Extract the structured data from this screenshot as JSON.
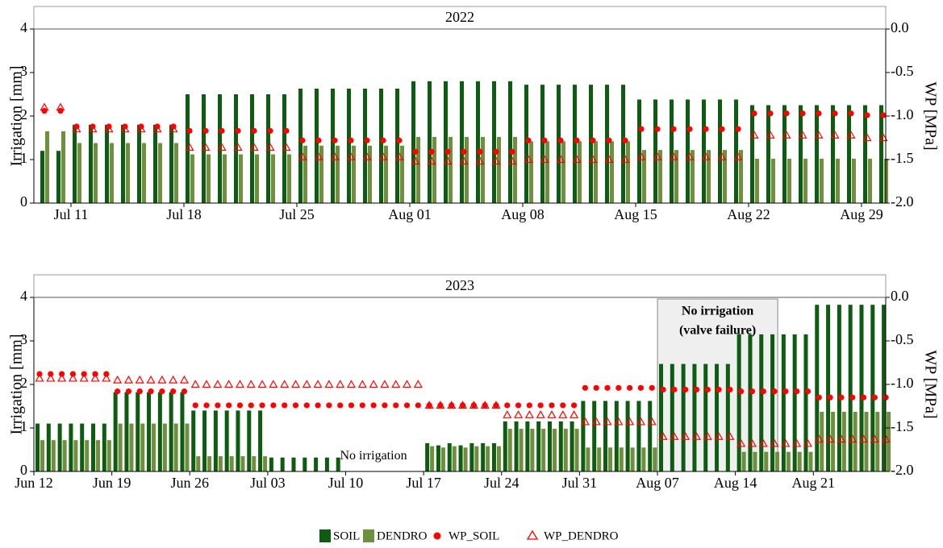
{
  "chart_data": [
    {
      "type": "bar",
      "title": "2022",
      "ylabel": "Irrigation [mm]",
      "y2label": "WP [MPa]",
      "x": [
        190,
        191,
        192,
        193,
        194,
        195,
        196,
        197,
        198,
        199,
        200,
        201,
        202,
        203,
        204,
        205,
        206,
        207,
        208,
        209,
        210,
        211,
        212,
        213,
        214,
        215,
        216,
        217,
        218,
        219,
        220,
        221,
        222,
        223,
        224,
        225,
        226,
        227,
        228,
        229,
        230,
        231,
        232,
        233,
        234,
        235,
        236,
        237,
        238,
        239,
        240,
        241,
        242
      ],
      "xlim": [
        189.7,
        242.5
      ],
      "xticks": [
        {
          "value": 192,
          "label": "Jul 11"
        },
        {
          "value": 199,
          "label": "Jul 18"
        },
        {
          "value": 206,
          "label": "Jul 25"
        },
        {
          "value": 213,
          "label": "Aug 01"
        },
        {
          "value": 220,
          "label": "Aug 08"
        },
        {
          "value": 227,
          "label": "Aug 15"
        },
        {
          "value": 234,
          "label": "Aug 22"
        },
        {
          "value": 241,
          "label": "Aug 29"
        }
      ],
      "ylim": [
        0,
        4
      ],
      "yticks": [
        0,
        1,
        2,
        3,
        4
      ],
      "y2lim": [
        -2,
        0
      ],
      "y2ticks": [
        {
          "value": 0,
          "label": "0.0"
        },
        -0.5,
        {
          "value": -1,
          "label": "-1.0"
        },
        -1.5,
        {
          "value": -2,
          "label": "-2.0"
        }
      ],
      "grid": false,
      "series": [
        {
          "name": "SOIL",
          "color": "#0d5c12",
          "marker": "bar",
          "values": [
            1.2,
            1.2,
            1.8,
            1.8,
            1.8,
            1.8,
            1.8,
            1.8,
            1.8,
            2.5,
            2.5,
            2.5,
            2.5,
            2.5,
            2.5,
            2.5,
            2.63,
            2.63,
            2.63,
            2.63,
            2.63,
            2.63,
            2.63,
            2.8,
            2.8,
            2.8,
            2.8,
            2.8,
            2.8,
            2.8,
            2.72,
            2.72,
            2.72,
            2.72,
            2.72,
            2.72,
            2.72,
            2.38,
            2.38,
            2.38,
            2.38,
            2.38,
            2.38,
            2.38,
            2.25,
            2.25,
            2.25,
            2.25,
            2.25,
            2.25,
            2.25,
            2.25,
            2.25
          ]
        },
        {
          "name": "DENDRO",
          "color": "#6e8f3c",
          "marker": "bar",
          "values": [
            1.65,
            1.65,
            1.38,
            1.38,
            1.38,
            1.38,
            1.38,
            1.38,
            1.38,
            1.12,
            1.12,
            1.12,
            1.12,
            1.12,
            1.12,
            1.12,
            1.32,
            1.32,
            1.32,
            1.32,
            1.32,
            1.32,
            1.32,
            1.52,
            1.52,
            1.52,
            1.52,
            1.52,
            1.52,
            1.52,
            1.42,
            1.42,
            1.42,
            1.42,
            1.42,
            1.42,
            1.42,
            1.22,
            1.22,
            1.22,
            1.22,
            1.22,
            1.22,
            1.22,
            1.02,
            1.02,
            1.02,
            1.02,
            1.02,
            1.02,
            1.02,
            1.02,
            1.02
          ]
        },
        {
          "name": "WP_SOIL",
          "color": "#ff0000",
          "marker": "circle",
          "axis": "y2",
          "values": [
            -0.94,
            -0.94,
            -1.12,
            -1.12,
            -1.12,
            -1.12,
            -1.12,
            -1.12,
            -1.12,
            -1.17,
            -1.17,
            -1.17,
            -1.17,
            -1.17,
            -1.17,
            -1.17,
            -1.28,
            -1.28,
            -1.28,
            -1.28,
            -1.28,
            -1.28,
            -1.28,
            -1.41,
            -1.41,
            -1.41,
            -1.41,
            -1.41,
            -1.41,
            -1.41,
            -1.28,
            -1.28,
            -1.28,
            -1.28,
            -1.28,
            -1.28,
            -1.28,
            -1.15,
            -1.15,
            -1.15,
            -1.15,
            -1.15,
            -1.15,
            -1.15,
            -0.97,
            -0.97,
            -0.97,
            -0.97,
            -0.97,
            -0.97,
            -0.97,
            -0.99,
            -0.99
          ]
        },
        {
          "name": "WP_DENDRO",
          "color": "#ff0000",
          "marker": "triangle",
          "axis": "y2",
          "values": [
            -0.9,
            -0.9,
            -1.15,
            -1.15,
            -1.15,
            -1.15,
            -1.15,
            -1.15,
            -1.15,
            -1.36,
            -1.36,
            -1.36,
            -1.36,
            -1.36,
            -1.36,
            -1.36,
            -1.47,
            -1.47,
            -1.47,
            -1.47,
            -1.47,
            -1.47,
            -1.47,
            -1.52,
            -1.52,
            -1.52,
            -1.52,
            -1.52,
            -1.52,
            -1.52,
            -1.5,
            -1.5,
            -1.5,
            -1.5,
            -1.5,
            -1.5,
            -1.5,
            -1.47,
            -1.47,
            -1.47,
            -1.47,
            -1.47,
            -1.47,
            -1.47,
            -1.22,
            -1.22,
            -1.22,
            -1.22,
            -1.22,
            -1.22,
            -1.22,
            -1.25,
            -1.25
          ]
        }
      ]
    },
    {
      "type": "bar",
      "title": "2023",
      "ylabel": "Irrigation [mm]",
      "y2label": "WP [MPa]",
      "x": [
        163,
        164,
        165,
        166,
        167,
        168,
        169,
        170,
        171,
        172,
        173,
        174,
        175,
        176,
        177,
        178,
        179,
        180,
        181,
        182,
        183,
        184,
        185,
        186,
        187,
        188,
        189,
        190,
        191,
        192,
        193,
        194,
        195,
        196,
        197,
        198,
        199,
        200,
        201,
        202,
        203,
        204,
        205,
        206,
        207,
        208,
        209,
        210,
        211,
        212,
        213,
        214,
        215,
        216,
        217,
        218,
        219,
        220,
        221,
        222,
        223,
        224,
        225,
        226,
        227,
        228,
        229,
        230,
        231,
        232,
        233,
        234,
        235,
        236,
        237,
        238,
        239
      ],
      "xlim": [
        163,
        239.5
      ],
      "xticks": [
        {
          "value": 163,
          "label": "Jun 12"
        },
        {
          "value": 170,
          "label": "Jun 19"
        },
        {
          "value": 177,
          "label": "Jun 26"
        },
        {
          "value": 184,
          "label": "Jul 03"
        },
        {
          "value": 191,
          "label": "Jul 10"
        },
        {
          "value": 198,
          "label": "Jul 17"
        },
        {
          "value": 205,
          "label": "Jul 24"
        },
        {
          "value": 212,
          "label": "Jul 31"
        },
        {
          "value": 219,
          "label": "Aug 07"
        },
        {
          "value": 226,
          "label": "Aug 14"
        },
        {
          "value": 233,
          "label": "Aug 21"
        }
      ],
      "ylim": [
        0,
        4
      ],
      "yticks": [
        0,
        1,
        2,
        3,
        4
      ],
      "y2lim": [
        -2,
        0
      ],
      "y2ticks": [
        {
          "value": 0,
          "label": "0.0"
        },
        -0.5,
        {
          "value": -1,
          "label": "-1.0"
        },
        -1.5,
        {
          "value": -2,
          "label": "-2.0"
        }
      ],
      "grid": false,
      "annotations": [
        {
          "text": "No irrigation",
          "x": 193.5,
          "y": 0.35
        }
      ],
      "span_annotation": {
        "text": [
          "No irrigation",
          "(valve failure)"
        ],
        "x": [
          219,
          229.8
        ]
      },
      "series": [
        {
          "name": "SOIL",
          "color": "#0d5c12",
          "marker": "bar",
          "values": [
            1.1,
            1.1,
            1.1,
            1.1,
            1.1,
            1.1,
            1.1,
            1.82,
            1.82,
            1.82,
            1.82,
            1.82,
            1.82,
            1.82,
            1.4,
            1.4,
            1.4,
            1.4,
            1.4,
            1.4,
            1.4,
            0.32,
            0.32,
            0.32,
            0.32,
            0.32,
            0.32,
            0.32,
            null,
            null,
            null,
            null,
            null,
            null,
            null,
            0.65,
            0.6,
            0.65,
            0.6,
            0.65,
            0.65,
            0.65,
            1.15,
            1.15,
            1.15,
            1.15,
            1.15,
            1.15,
            1.15,
            1.62,
            1.62,
            1.62,
            1.62,
            1.62,
            1.62,
            1.62,
            2.47,
            2.47,
            2.47,
            2.47,
            2.47,
            2.47,
            2.47,
            3.15,
            3.15,
            3.15,
            3.15,
            3.15,
            3.15,
            3.15,
            3.83,
            3.83,
            3.83,
            3.83,
            3.83,
            3.83,
            3.83
          ]
        },
        {
          "name": "DENDRO",
          "color": "#6e8f3c",
          "marker": "bar",
          "values": [
            0.72,
            0.72,
            0.72,
            0.72,
            0.72,
            0.72,
            0.72,
            1.1,
            1.1,
            1.1,
            1.1,
            1.1,
            1.1,
            1.1,
            0.35,
            0.35,
            0.35,
            0.35,
            0.35,
            0.35,
            0.35,
            null,
            null,
            null,
            null,
            null,
            null,
            null,
            null,
            null,
            null,
            null,
            null,
            null,
            null,
            0.58,
            0.55,
            0.58,
            0.55,
            0.58,
            0.58,
            0.58,
            0.98,
            0.98,
            0.98,
            0.98,
            0.98,
            0.98,
            0.98,
            0.55,
            0.55,
            0.55,
            0.55,
            0.55,
            0.55,
            0.55,
            null,
            null,
            null,
            null,
            null,
            null,
            null,
            0.45,
            0.45,
            0.45,
            0.45,
            0.45,
            0.45,
            0.45,
            1.37,
            1.37,
            1.37,
            1.37,
            1.37,
            1.37,
            1.37
          ]
        },
        {
          "name": "WP_SOIL",
          "color": "#ff0000",
          "marker": "circle",
          "axis": "y2",
          "values": [
            -0.88,
            -0.88,
            -0.88,
            -0.88,
            -0.88,
            -0.88,
            -0.88,
            -1.08,
            -1.08,
            -1.08,
            -1.08,
            -1.08,
            -1.08,
            -1.08,
            -1.24,
            -1.24,
            -1.24,
            -1.24,
            -1.24,
            -1.24,
            -1.24,
            -1.24,
            -1.24,
            -1.24,
            -1.24,
            -1.24,
            -1.24,
            -1.24,
            -1.24,
            -1.24,
            -1.24,
            -1.24,
            -1.24,
            -1.24,
            -1.24,
            -1.24,
            -1.24,
            -1.24,
            -1.24,
            -1.24,
            -1.24,
            -1.24,
            -1.24,
            -1.24,
            -1.24,
            -1.24,
            -1.24,
            -1.24,
            -1.24,
            -1.04,
            -1.04,
            -1.04,
            -1.04,
            -1.04,
            -1.04,
            -1.04,
            -1.06,
            -1.06,
            -1.06,
            -1.06,
            -1.06,
            -1.06,
            -1.06,
            -1.08,
            -1.08,
            -1.08,
            -1.08,
            -1.08,
            -1.08,
            -1.08,
            -1.15,
            -1.15,
            -1.15,
            -1.15,
            -1.15,
            -1.15,
            -1.15
          ]
        },
        {
          "name": "WP_DENDRO",
          "color": "#ff0000",
          "marker": "triangle",
          "axis": "y2",
          "values": [
            -0.93,
            -0.93,
            -0.93,
            -0.93,
            -0.93,
            -0.93,
            -0.93,
            -0.95,
            -0.95,
            -0.95,
            -0.95,
            -0.95,
            -0.95,
            -0.95,
            -1.0,
            -1.0,
            -1.0,
            -1.0,
            -1.0,
            -1.0,
            -1.0,
            -1.0,
            -1.0,
            -1.0,
            -1.0,
            -1.0,
            -1.0,
            -1.0,
            -1.0,
            -1.0,
            -1.0,
            -1.0,
            -1.0,
            -1.0,
            -1.0,
            -1.24,
            -1.24,
            -1.24,
            -1.24,
            -1.24,
            -1.24,
            -1.24,
            -1.35,
            -1.35,
            -1.35,
            -1.35,
            -1.35,
            -1.35,
            -1.35,
            -1.43,
            -1.43,
            -1.43,
            -1.43,
            -1.43,
            -1.43,
            -1.43,
            -1.6,
            -1.6,
            -1.6,
            -1.6,
            -1.6,
            -1.6,
            -1.6,
            -1.68,
            -1.68,
            -1.68,
            -1.68,
            -1.68,
            -1.68,
            -1.68,
            -1.63,
            -1.63,
            -1.63,
            -1.63,
            -1.63,
            -1.63,
            -1.63
          ]
        }
      ]
    }
  ]
}
